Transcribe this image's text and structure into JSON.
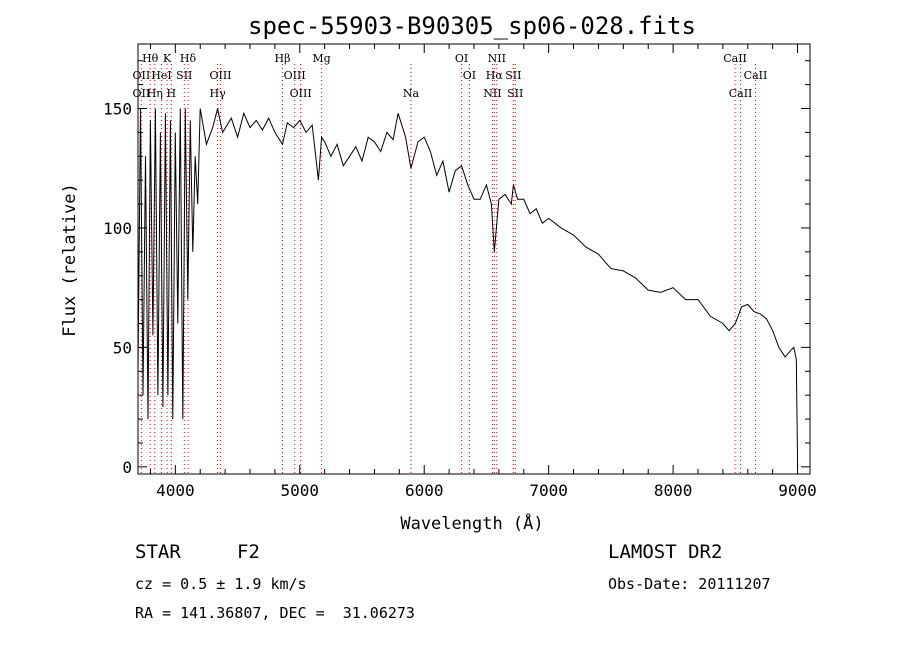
{
  "chart_data": {
    "type": "line",
    "title": "spec-55903-B90305_sp06-028.fits",
    "xlabel": "Wavelength (Å)",
    "ylabel": "Flux (relative)",
    "xlim": [
      3700,
      9100
    ],
    "ylim": [
      -3,
      177
    ],
    "x_ticks": [
      4000,
      5000,
      6000,
      7000,
      8000,
      9000
    ],
    "y_ticks": [
      0,
      50,
      100,
      150
    ],
    "grid": false,
    "line_color": "#000000",
    "marker_line_color": "#ff0000",
    "series": [
      {
        "x": [
          3700,
          3720,
          3740,
          3760,
          3780,
          3800,
          3820,
          3840,
          3860,
          3880,
          3900,
          3920,
          3940,
          3960,
          3980,
          4000,
          4020,
          4040,
          4060,
          4080,
          4100,
          4120,
          4140,
          4160,
          4180,
          4200,
          4250,
          4300,
          4340,
          4380,
          4450,
          4500,
          4550,
          4600,
          4650,
          4700,
          4750,
          4800,
          4861,
          4900,
          4950,
          5000,
          5050,
          5100,
          5150,
          5175,
          5200,
          5250,
          5300,
          5350,
          5400,
          5450,
          5500,
          5550,
          5600,
          5650,
          5700,
          5750,
          5790,
          5850,
          5893,
          5950,
          6000,
          6050,
          6100,
          6150,
          6200,
          6250,
          6300,
          6350,
          6400,
          6450,
          6500,
          6540,
          6563,
          6600,
          6650,
          6700,
          6717,
          6750,
          6800,
          6850,
          6900,
          6950,
          7000,
          7100,
          7200,
          7300,
          7400,
          7500,
          7600,
          7700,
          7800,
          7900,
          8000,
          8100,
          8200,
          8300,
          8400,
          8450,
          8500,
          8550,
          8600,
          8650,
          8700,
          8750,
          8800,
          8850,
          8900,
          8950,
          8970,
          8990,
          9000
        ],
        "y": [
          40,
          150,
          30,
          130,
          20,
          145,
          55,
          150,
          30,
          140,
          25,
          148,
          30,
          145,
          20,
          140,
          60,
          150,
          20,
          150,
          70,
          145,
          90,
          130,
          110,
          150,
          135,
          142,
          150,
          140,
          146,
          138,
          148,
          142,
          145,
          141,
          146,
          140,
          135,
          144,
          142,
          145,
          140,
          143,
          120,
          138,
          136,
          130,
          135,
          126,
          130,
          134,
          128,
          138,
          136,
          132,
          140,
          137,
          148,
          138,
          125,
          136,
          138,
          132,
          122,
          128,
          115,
          124,
          126,
          118,
          112,
          112,
          118,
          110,
          90,
          112,
          114,
          110,
          118,
          112,
          112,
          106,
          108,
          102,
          104,
          100,
          97,
          92,
          89,
          83,
          82,
          79,
          74,
          73,
          75,
          70,
          70,
          63,
          60,
          57,
          60,
          67,
          68,
          65,
          64,
          62,
          57,
          50,
          46,
          49,
          50,
          45,
          0
        ]
      }
    ],
    "line_markers": [
      {
        "label": "Hθ",
        "wavelength": 3798,
        "row": 1
      },
      {
        "label": "K",
        "wavelength": 3934,
        "row": 1
      },
      {
        "label": "Hδ",
        "wavelength": 4102,
        "row": 1
      },
      {
        "label": "Hβ",
        "wavelength": 4861,
        "row": 1
      },
      {
        "label": "Mg",
        "wavelength": 5175,
        "row": 1
      },
      {
        "label": "OI",
        "wavelength": 6300,
        "row": 1
      },
      {
        "label": "NII",
        "wavelength": 6583,
        "row": 1
      },
      {
        "label": "CaII",
        "wavelength": 8498,
        "row": 1
      },
      {
        "label": "OII",
        "wavelength": 3727,
        "row": 2
      },
      {
        "label": "HeI",
        "wavelength": 3889,
        "row": 2
      },
      {
        "label": "SII",
        "wavelength": 4072,
        "row": 2
      },
      {
        "label": "OIII",
        "wavelength": 4363,
        "row": 2
      },
      {
        "label": "OIII",
        "wavelength": 4959,
        "row": 2
      },
      {
        "label": "OI",
        "wavelength": 6363,
        "row": 2
      },
      {
        "label": "Hα",
        "wavelength": 6563,
        "row": 2
      },
      {
        "label": "SII",
        "wavelength": 6716,
        "row": 2
      },
      {
        "label": "CaII",
        "wavelength": 8662,
        "row": 2
      },
      {
        "label": "OII",
        "wavelength": 3727,
        "row": 3
      },
      {
        "label": "Hη",
        "wavelength": 3835,
        "row": 3
      },
      {
        "label": "H",
        "wavelength": 3968,
        "row": 3
      },
      {
        "label": "Hγ",
        "wavelength": 4340,
        "row": 3
      },
      {
        "label": "OIII",
        "wavelength": 5007,
        "row": 3
      },
      {
        "label": "Na",
        "wavelength": 5893,
        "row": 3
      },
      {
        "label": "NII",
        "wavelength": 6548,
        "row": 3
      },
      {
        "label": "SII",
        "wavelength": 6731,
        "row": 3
      },
      {
        "label": "CaII",
        "wavelength": 8542,
        "row": 3
      }
    ]
  },
  "info": {
    "object_class": "STAR",
    "subclass": "F2",
    "survey": "LAMOST DR2",
    "cz": "cz = 0.5 ± 1.9 km/s",
    "obs_date": "Obs-Date: 20111207",
    "coords": "RA = 141.36807, DEC =  31.06273"
  }
}
